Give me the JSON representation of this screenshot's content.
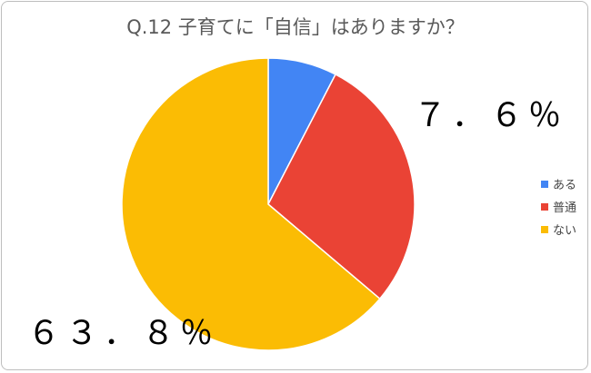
{
  "chart_data": {
    "type": "pie",
    "title": "Q.12 子育てに「自信」はありますか？",
    "start_angle": "top",
    "direction": "clockwise",
    "slices": [
      {
        "name": "ある",
        "value": 7.6,
        "color": "#4285f4"
      },
      {
        "name": "普通",
        "value": 28.6,
        "color": "#ea4335"
      },
      {
        "name": "ない",
        "value": 63.8,
        "color": "#fbbc04"
      }
    ],
    "data_labels": [
      "７．６％",
      "６３．８％"
    ],
    "legend_position": "right"
  }
}
